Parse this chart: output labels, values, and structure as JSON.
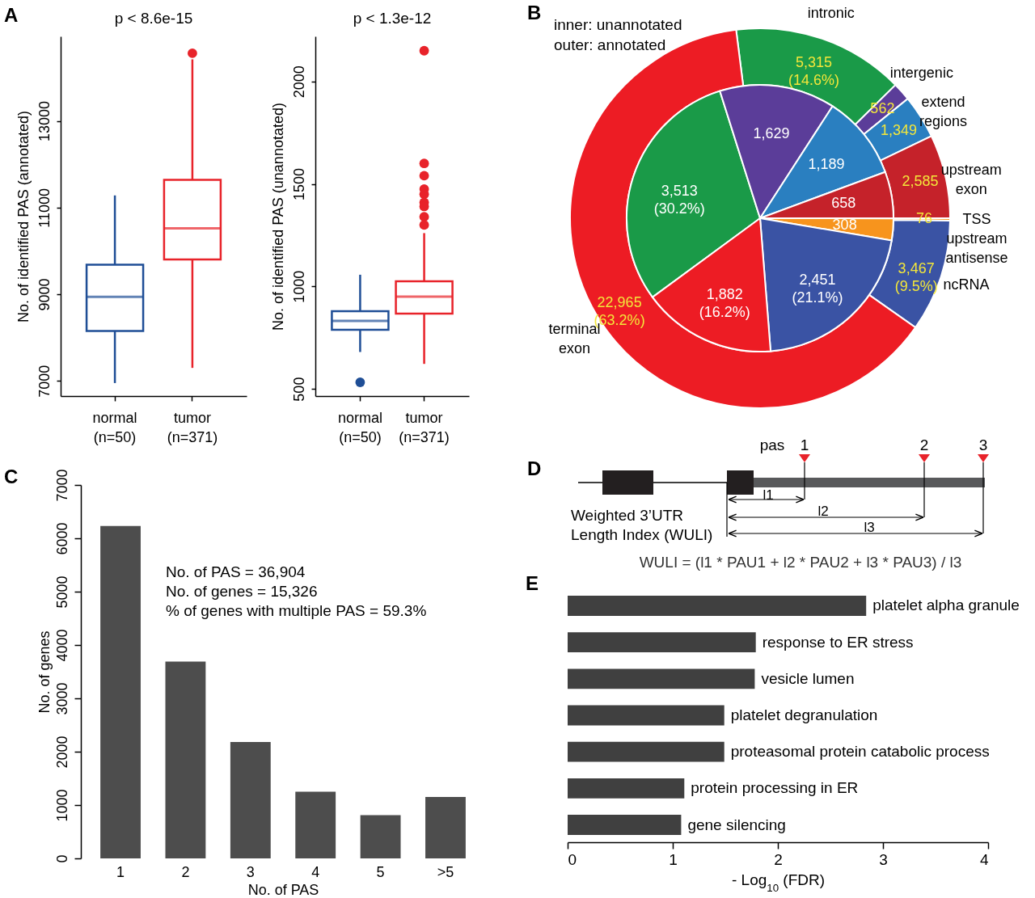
{
  "chart_data": [
    {
      "type": "box",
      "title": "A",
      "ylabel": "No. of identified PAS (annotated)",
      "categories": [
        "normal\n(n=50)",
        "tumor\n(n=371)"
      ],
      "colors": [
        "#1f4e96",
        "#e8232a"
      ],
      "ylim": [
        6650,
        14950
      ],
      "yticks": [
        7000,
        9000,
        11000,
        13000
      ],
      "boxes": [
        {
          "low": 6950,
          "q1": 8150,
          "median": 8940,
          "q3": 9680,
          "high": 11280
        },
        {
          "low": 7300,
          "q1": 9800,
          "median": 10520,
          "q3": 11640,
          "high": 14420,
          "outliers": [
            14560
          ]
        }
      ],
      "annotations": [
        "p < 8.6e-15"
      ]
    },
    {
      "type": "box",
      "ylabel": "No. of identified PAS (unannotated)",
      "categories": [
        "normal\n(n=50)",
        "tumor\n(n=371)"
      ],
      "colors": [
        "#1f4e96",
        "#e8232a"
      ],
      "ylim": [
        465,
        2220
      ],
      "yticks": [
        500,
        1000,
        1500,
        2000
      ],
      "boxes": [
        {
          "low": 680,
          "q1": 788,
          "median": 832,
          "q3": 879,
          "high": 1057,
          "outliers": [
            532
          ]
        },
        {
          "low": 622,
          "q1": 867,
          "median": 950,
          "q3": 1025,
          "high": 1260,
          "outliers": [
            2150,
            1600,
            1540,
            1475,
            1450,
            1410,
            1390,
            1340,
            1300
          ]
        }
      ],
      "annotations": [
        "p < 1.3e-12"
      ]
    },
    {
      "type": "donut",
      "title": "B",
      "categories": [
        "intronic",
        "intergenic",
        "extend\nregions",
        "upstream\nexon",
        "TSS\nupstream\nantisense",
        "ncRNA",
        "terminal\nexon"
      ],
      "colors": [
        "#1a9a48",
        "#5b3d99",
        "#2a7fc0",
        "#c5222a",
        "#f7941d",
        "#3a53a4",
        "#ed1c24"
      ],
      "series": [
        {
          "values": [
            5315,
            562,
            1349,
            2585,
            76,
            3467,
            22965
          ],
          "value_labels": [
            "5,315\n(14.6%)",
            "562",
            "1,349",
            "2,585",
            "76",
            "3,467\n(9.5%)",
            "22,965\n(63.2%)"
          ]
        },
        {
          "values": [
            3513,
            1629,
            1189,
            658,
            308,
            2451,
            1882
          ],
          "value_labels": [
            "3,513\n(30.2%)",
            "1,629",
            "1,189",
            "658",
            "308",
            "2,451\n(21.1%)",
            "1,882\n(16.2%)"
          ]
        }
      ],
      "annotations": [
        "inner: unannotated",
        "outer: annotated"
      ]
    },
    {
      "type": "bar",
      "title": "C",
      "xlabel": "No. of PAS",
      "ylabel": "No. of genes",
      "categories": [
        "1",
        "2",
        "3",
        "4",
        "5",
        ">5"
      ],
      "values": [
        6230,
        3690,
        2180,
        1250,
        810,
        1150
      ],
      "color": "#4d4d4d",
      "ylim": [
        0,
        7000
      ],
      "yticks": [
        0,
        1000,
        2000,
        3000,
        4000,
        5000,
        6000,
        7000
      ],
      "annotations": [
        "No. of PAS = 36,904",
        "No. of genes = 15,326",
        "% of genes with multiple PAS = 59.3%"
      ]
    },
    {
      "type": "other",
      "title": "D",
      "annotations": [
        "pas",
        "1",
        "2",
        "3",
        "l1",
        "l2",
        "l3",
        "Weighted 3’UTR",
        "Length Index (WULI)",
        "WULI = (l1 * PAU1 + l2 * PAU2 + l3 * PAU3) / l3"
      ]
    },
    {
      "type": "bar",
      "orientation": "horizontal",
      "title": "E",
      "xlabel": "- Log$_{10}$ (FDR)",
      "categories": [
        "platelet alpha granule",
        "response to ER stress",
        "vesicle lumen",
        "platelet degranulation",
        "proteasomal protein catabolic process",
        "protein processing in ER",
        "gene silencing"
      ],
      "values": [
        2.84,
        1.79,
        1.78,
        1.49,
        1.49,
        1.11,
        1.08
      ],
      "color": "#404040",
      "xlim": [
        0,
        4
      ],
      "xticks": [
        0,
        1,
        2,
        3,
        4
      ]
    }
  ]
}
